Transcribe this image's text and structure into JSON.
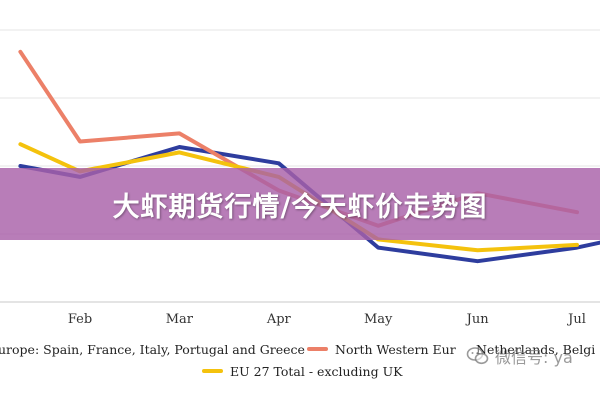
{
  "banner": {
    "title": "大虾期货行情/今天虾价走势图"
  },
  "watermark": {
    "text": "微信号: ya"
  },
  "chart_data": {
    "type": "line",
    "categories": [
      "Feb",
      "Mar",
      "Apr",
      "May",
      "Jun",
      "Jul"
    ],
    "x_index_range": [
      -0.6,
      5.25
    ],
    "ylim": [
      0,
      100
    ],
    "grid": true,
    "legend_placement": "bottom",
    "series": [
      {
        "name": "Southern Europe: Spain, France, Italy, Portugal and Greece",
        "legend_text": "urope: Spain, France, Italy, Portugal and Greece",
        "color": "#2e3d9e",
        "points": [
          [
            -0.6,
            50
          ],
          [
            0,
            46
          ],
          [
            1,
            57
          ],
          [
            2,
            51
          ],
          [
            3,
            20
          ],
          [
            4,
            15
          ],
          [
            5,
            20
          ],
          [
            5.25,
            22
          ]
        ]
      },
      {
        "name": "North Western Europe: Netherlands, Belgium",
        "legend_text": "North Western Eur",
        "legend_text_tail": "Netherlands, Belgi",
        "color": "#ec8068",
        "points": [
          [
            -0.6,
            92
          ],
          [
            0,
            59
          ],
          [
            1,
            62
          ],
          [
            2,
            41
          ],
          [
            3,
            28
          ],
          [
            4,
            40
          ],
          [
            5,
            33
          ]
        ]
      },
      {
        "name": "EU 27 Total - excluding UK",
        "legend_text": "EU 27 Total - excluding UK",
        "color": "#f4c20d",
        "points": [
          [
            -0.6,
            58
          ],
          [
            0,
            48
          ],
          [
            1,
            55
          ],
          [
            2,
            46
          ],
          [
            3,
            23
          ],
          [
            4,
            19
          ],
          [
            5,
            21
          ]
        ]
      }
    ]
  }
}
